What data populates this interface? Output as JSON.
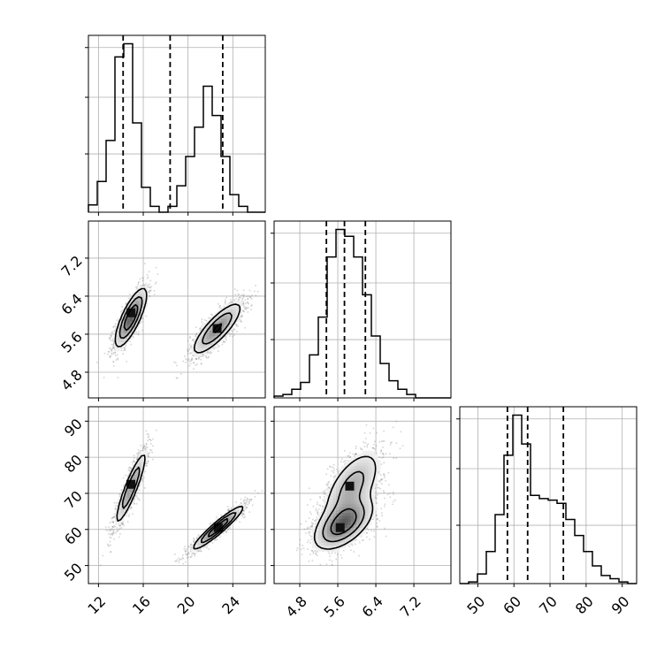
{
  "chart_data": {
    "type": "corner",
    "parameters": 3,
    "ticks": {
      "x1": [
        "12",
        "16",
        "20",
        "24"
      ],
      "y2": [
        "4.8",
        "5.6",
        "6.4",
        "7.2"
      ],
      "x2": [
        "4.8",
        "5.6",
        "6.4",
        "7.2"
      ],
      "y3": [
        "50",
        "60",
        "70",
        "80",
        "90"
      ],
      "x3": [
        "50",
        "60",
        "70",
        "80",
        "90"
      ]
    },
    "ranges": {
      "x1": [
        11.1,
        26.9
      ],
      "x2": [
        4.26,
        7.98
      ],
      "x3": [
        45.0,
        94.0
      ]
    },
    "grid": true,
    "quantile_lines": {
      "x1": [
        14.2,
        18.4,
        23.1
      ],
      "x2": [
        5.36,
        5.74,
        6.18
      ],
      "x3": [
        58.2,
        63.8,
        73.7
      ]
    },
    "hist_x1": {
      "edges": [
        11.1,
        11.89,
        12.68,
        13.47,
        14.26,
        15.05,
        15.84,
        16.63,
        17.42,
        18.21,
        19.0,
        19.79,
        20.58,
        21.37,
        22.16,
        22.95,
        23.74,
        24.53,
        25.32,
        26.11,
        26.9
      ],
      "counts": [
        0.05,
        0.21,
        0.49,
        1.06,
        1.15,
        0.61,
        0.17,
        0.04,
        0.0,
        0.04,
        0.18,
        0.38,
        0.58,
        0.86,
        0.66,
        0.38,
        0.12,
        0.04,
        0.0,
        0.0
      ]
    },
    "hist_x2": {
      "edges": [
        4.26,
        4.446,
        4.632,
        4.818,
        5.004,
        5.19,
        5.376,
        5.562,
        5.748,
        5.934,
        6.12,
        6.306,
        6.492,
        6.678,
        6.864,
        7.05,
        7.236,
        7.422,
        7.608,
        7.794,
        7.98
      ],
      "counts": [
        0.01,
        0.02,
        0.05,
        0.09,
        0.25,
        0.47,
        0.82,
        0.98,
        0.94,
        0.82,
        0.6,
        0.36,
        0.2,
        0.1,
        0.05,
        0.02,
        0.0,
        0.0,
        0.0,
        0.0
      ]
    },
    "hist_x3": {
      "edges": [
        45.0,
        47.45,
        49.9,
        52.35,
        54.8,
        57.25,
        59.7,
        62.15,
        64.6,
        67.05,
        69.5,
        71.95,
        74.4,
        76.85,
        79.3,
        81.75,
        84.2,
        86.65,
        89.1,
        91.55,
        94.0
      ],
      "counts": [
        0.0,
        0.01,
        0.06,
        0.2,
        0.43,
        0.8,
        1.05,
        0.87,
        0.55,
        0.53,
        0.52,
        0.5,
        0.4,
        0.3,
        0.2,
        0.11,
        0.05,
        0.03,
        0.01,
        0.0
      ]
    },
    "clusters_x1_x2": [
      {
        "mx": 14.9,
        "my": 5.95,
        "sx": 0.75,
        "sy": 0.33,
        "rho": 0.78,
        "weight": 0.5,
        "peak_x": 14.9,
        "peak_y": 6.05
      },
      {
        "mx": 22.6,
        "my": 5.72,
        "sx": 1.2,
        "sy": 0.3,
        "rho": 0.82,
        "weight": 0.5,
        "peak_x": 22.6,
        "peak_y": 5.72
      }
    ],
    "clusters_x1_x3": [
      {
        "mx": 14.9,
        "my": 71.5,
        "sx": 0.75,
        "sy": 5.5,
        "rho": 0.9,
        "weight": 0.5,
        "peak_x": 14.9,
        "peak_y": 72.5
      },
      {
        "mx": 22.7,
        "my": 60.5,
        "sx": 1.2,
        "sy": 3.2,
        "rho": 0.94,
        "weight": 0.5,
        "peak_x": 22.7,
        "peak_y": 60.5
      }
    ],
    "clusters_x2_x3": [
      {
        "mx": 5.72,
        "my": 61.5,
        "sx": 0.33,
        "sy": 3.8,
        "rho": 0.55,
        "weight": 0.55,
        "peak_x": 5.65,
        "peak_y": 60.5
      },
      {
        "mx": 5.9,
        "my": 72.0,
        "sx": 0.33,
        "sy": 5.5,
        "rho": 0.6,
        "weight": 0.45,
        "peak_x": 5.85,
        "peak_y": 72.0
      }
    ],
    "contour_levels": [
      0.39,
      0.86,
      0.99
    ]
  }
}
